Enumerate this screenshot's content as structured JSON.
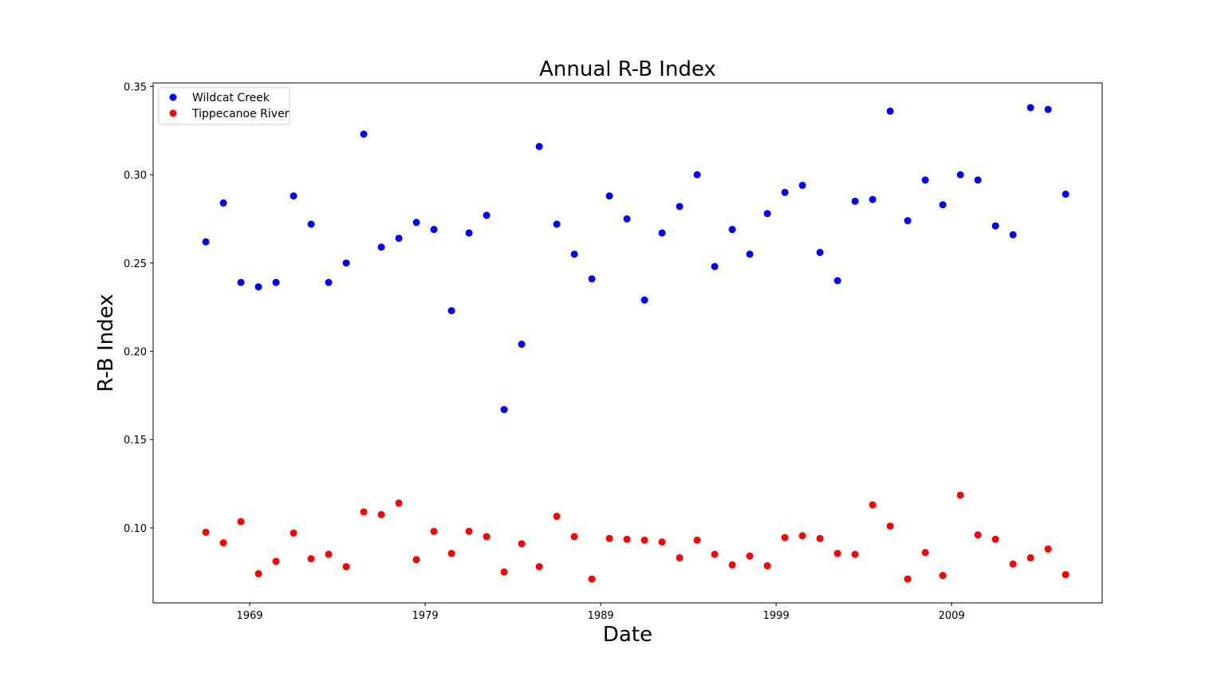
{
  "chart_data": {
    "type": "scatter",
    "title": "Annual R-B Index",
    "xlabel": "Date",
    "ylabel": "R-B Index",
    "xlim": [
      "1963-07-01",
      "2017-08-01"
    ],
    "ylim": [
      0.0575,
      0.352
    ],
    "x_ticks": [
      "1969",
      "1979",
      "1989",
      "1999",
      "2009"
    ],
    "y_ticks": [
      "0.10",
      "0.15",
      "0.20",
      "0.25",
      "0.30",
      "0.35"
    ],
    "grid": false,
    "legend_position": "upper-left",
    "x": [
      1966,
      1967,
      1968,
      1969,
      1970,
      1971,
      1972,
      1973,
      1974,
      1975,
      1976,
      1977,
      1978,
      1979,
      1980,
      1981,
      1982,
      1983,
      1984,
      1985,
      1986,
      1987,
      1988,
      1989,
      1990,
      1991,
      1992,
      1993,
      1994,
      1995,
      1996,
      1997,
      1998,
      1999,
      2000,
      2001,
      2002,
      2003,
      2004,
      2005,
      2006,
      2007,
      2008,
      2009,
      2010,
      2011,
      2012,
      2013,
      2014,
      2015
    ],
    "series": [
      {
        "name": "Wildcat Creek",
        "color": "#0000ff",
        "values": [
          0.262,
          0.284,
          0.239,
          0.2365,
          0.239,
          0.288,
          0.272,
          0.239,
          0.25,
          0.323,
          0.259,
          0.264,
          0.273,
          0.269,
          0.223,
          0.267,
          0.277,
          0.167,
          0.204,
          0.316,
          0.272,
          0.255,
          0.241,
          0.288,
          0.275,
          0.229,
          0.267,
          0.282,
          0.3,
          0.248,
          0.269,
          0.255,
          0.278,
          0.29,
          0.294,
          0.256,
          0.24,
          0.285,
          0.286,
          0.336,
          0.274,
          0.297,
          0.283,
          0.3,
          0.297,
          0.271,
          0.266,
          0.338,
          0.337,
          0.289
        ]
      },
      {
        "name": "Tippecanoe River",
        "color": "#ff0000",
        "values": [
          0.0975,
          0.0915,
          0.1035,
          0.074,
          0.081,
          0.097,
          0.0825,
          0.085,
          0.078,
          0.109,
          0.1075,
          0.114,
          0.082,
          0.098,
          0.0855,
          0.098,
          0.095,
          0.075,
          0.091,
          0.078,
          0.1065,
          0.095,
          0.071,
          0.094,
          0.0935,
          0.093,
          0.092,
          0.083,
          0.093,
          0.085,
          0.079,
          0.084,
          0.0785,
          0.0945,
          0.0955,
          0.094,
          0.0855,
          0.085,
          0.113,
          0.101,
          0.071,
          0.086,
          0.073,
          0.1185,
          0.096,
          0.0935,
          0.0795,
          0.083,
          0.088,
          0.0735
        ]
      }
    ]
  }
}
